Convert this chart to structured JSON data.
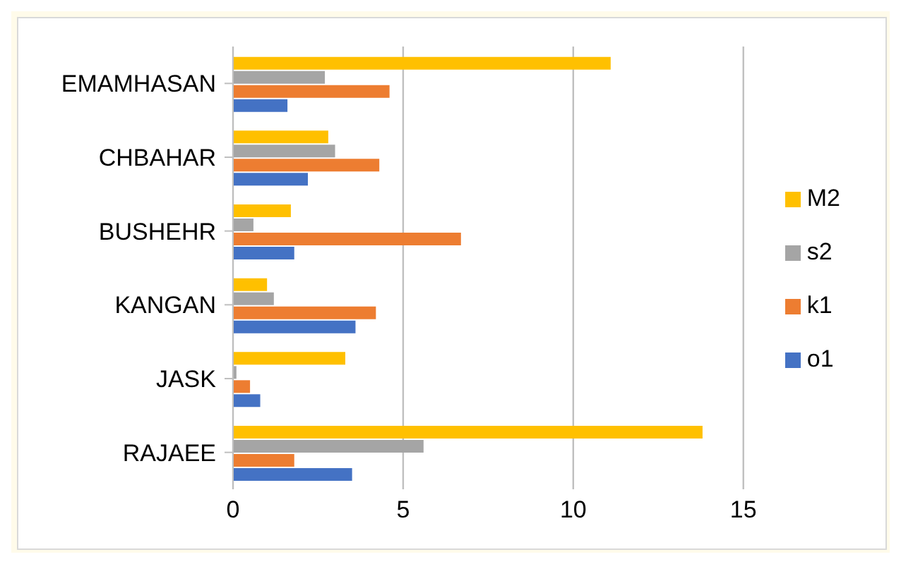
{
  "chart_data": {
    "type": "bar",
    "orientation": "horizontal",
    "categories": [
      "EMAMHASAN",
      "CHBAHAR",
      "BUSHEHR",
      "KANGAN",
      "JASK",
      "RAJAEE"
    ],
    "series": [
      {
        "name": "M2",
        "color": "#ffc000",
        "values": [
          11.1,
          2.8,
          1.7,
          1.0,
          3.3,
          13.8
        ]
      },
      {
        "name": "s2",
        "color": "#a5a5a5",
        "values": [
          2.7,
          3.0,
          0.6,
          1.2,
          0.1,
          5.6
        ]
      },
      {
        "name": "k1",
        "color": "#ed7d31",
        "values": [
          4.6,
          4.3,
          6.7,
          4.2,
          0.5,
          1.8
        ]
      },
      {
        "name": "o1",
        "color": "#4472c4",
        "values": [
          1.6,
          2.2,
          1.8,
          3.6,
          0.8,
          3.5
        ]
      }
    ],
    "xlim": [
      0,
      15
    ],
    "xticks": [
      0,
      5,
      10,
      15
    ],
    "grid": "x",
    "legend": "right"
  }
}
